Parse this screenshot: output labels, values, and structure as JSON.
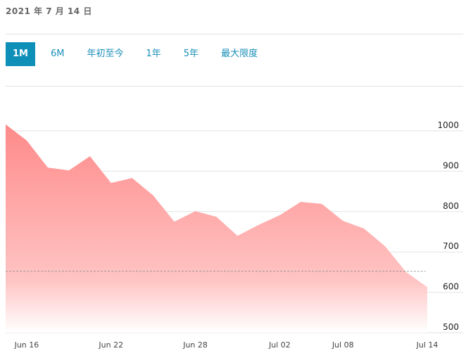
{
  "date_label": "2021 年 7 月 14 日",
  "tabs": [
    {
      "label": "1M",
      "active": true
    },
    {
      "label": "6M"
    },
    {
      "label": "年初至今"
    },
    {
      "label": "1年"
    },
    {
      "label": "5年"
    },
    {
      "label": "最大限度"
    }
  ],
  "chart_data": {
    "type": "area",
    "color": "#ff8a8a",
    "x": [
      "Jun 15",
      "Jun 16",
      "Jun 17",
      "Jun 18",
      "Jun 21",
      "Jun 22",
      "Jun 23",
      "Jun 24",
      "Jun 25",
      "Jun 28",
      "Jun 29",
      "Jun 30",
      "Jul 01",
      "Jul 02",
      "Jul 06",
      "Jul 07",
      "Jul 08",
      "Jul 09",
      "Jul 12",
      "Jul 13",
      "Jul 14"
    ],
    "values": [
      1009,
      969,
      902,
      895,
      930,
      864,
      876,
      833,
      768,
      794,
      780,
      733,
      760,
      784,
      817,
      812,
      770,
      751,
      707,
      643,
      606
    ],
    "reference_line": 645,
    "x_tick_labels": [
      "Jun 16",
      "Jun 22",
      "Jun 28",
      "Jul 02",
      "Jul 08",
      "Jul 14"
    ],
    "y_ticks": [
      500,
      600,
      700,
      800,
      900,
      1000
    ],
    "ylim": [
      500,
      1030
    ],
    "grid": true
  }
}
